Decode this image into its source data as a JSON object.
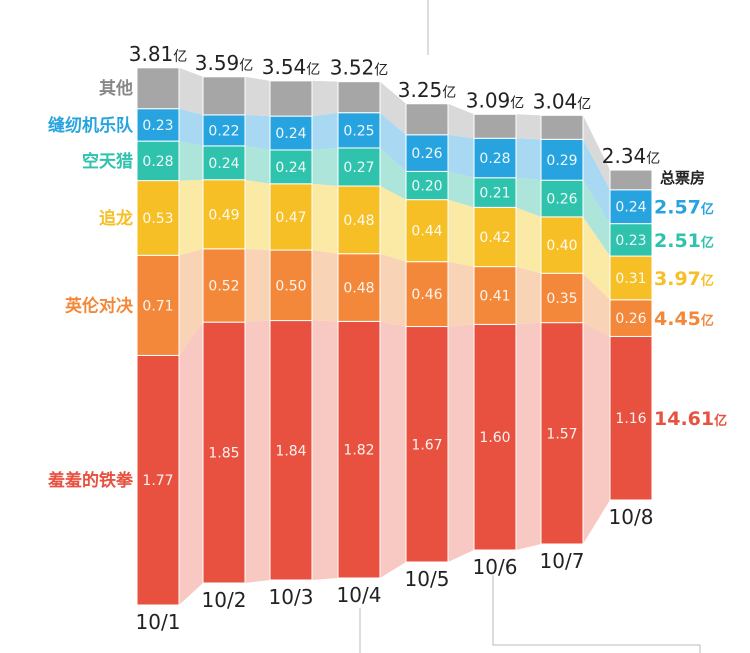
{
  "chart_data": {
    "type": "bar",
    "stacked": true,
    "title": "",
    "xlabel": "",
    "ylabel": "",
    "categories": [
      "10/1",
      "10/2",
      "10/3",
      "10/4",
      "10/5",
      "10/6",
      "10/7",
      "10/8"
    ],
    "totals": [
      "3.81",
      "3.59",
      "3.54",
      "3.52",
      "3.25",
      "3.09",
      "3.04",
      "2.34"
    ],
    "unit": "亿",
    "series": [
      {
        "name": "羞羞的铁拳",
        "color": "#e8513f",
        "band": "#f7c9c2",
        "values": [
          1.77,
          1.85,
          1.84,
          1.82,
          1.67,
          1.6,
          1.57,
          1.16
        ],
        "total": "14.61"
      },
      {
        "name": "英伦对决",
        "color": "#f4883a",
        "band": "#f9d3b5",
        "values": [
          0.71,
          0.52,
          0.5,
          0.48,
          0.46,
          0.41,
          0.35,
          0.26
        ],
        "total": "4.45"
      },
      {
        "name": "追龙",
        "color": "#f6bf26",
        "band": "#fbeaa6",
        "values": [
          0.53,
          0.49,
          0.47,
          0.48,
          0.44,
          0.42,
          0.4,
          0.31
        ],
        "total": "3.97"
      },
      {
        "name": "空天猎",
        "color": "#2fc2ad",
        "band": "#aee5da",
        "values": [
          0.28,
          0.24,
          0.24,
          0.27,
          0.2,
          0.21,
          0.26,
          0.23
        ],
        "total": "2.51"
      },
      {
        "name": "缝纫机乐队",
        "color": "#27a4e0",
        "band": "#a9d8f2",
        "values": [
          0.23,
          0.22,
          0.24,
          0.25,
          0.26,
          0.28,
          0.29,
          0.24
        ],
        "total": "2.57"
      },
      {
        "name": "其他",
        "color": "#a6a6a6",
        "band": "#d9d9d9",
        "values": [
          0.29,
          0.27,
          0.25,
          0.22,
          0.22,
          0.17,
          0.17,
          0.14
        ],
        "total": null
      }
    ],
    "legend_title": "总票房",
    "show_other_value_labels": false
  }
}
